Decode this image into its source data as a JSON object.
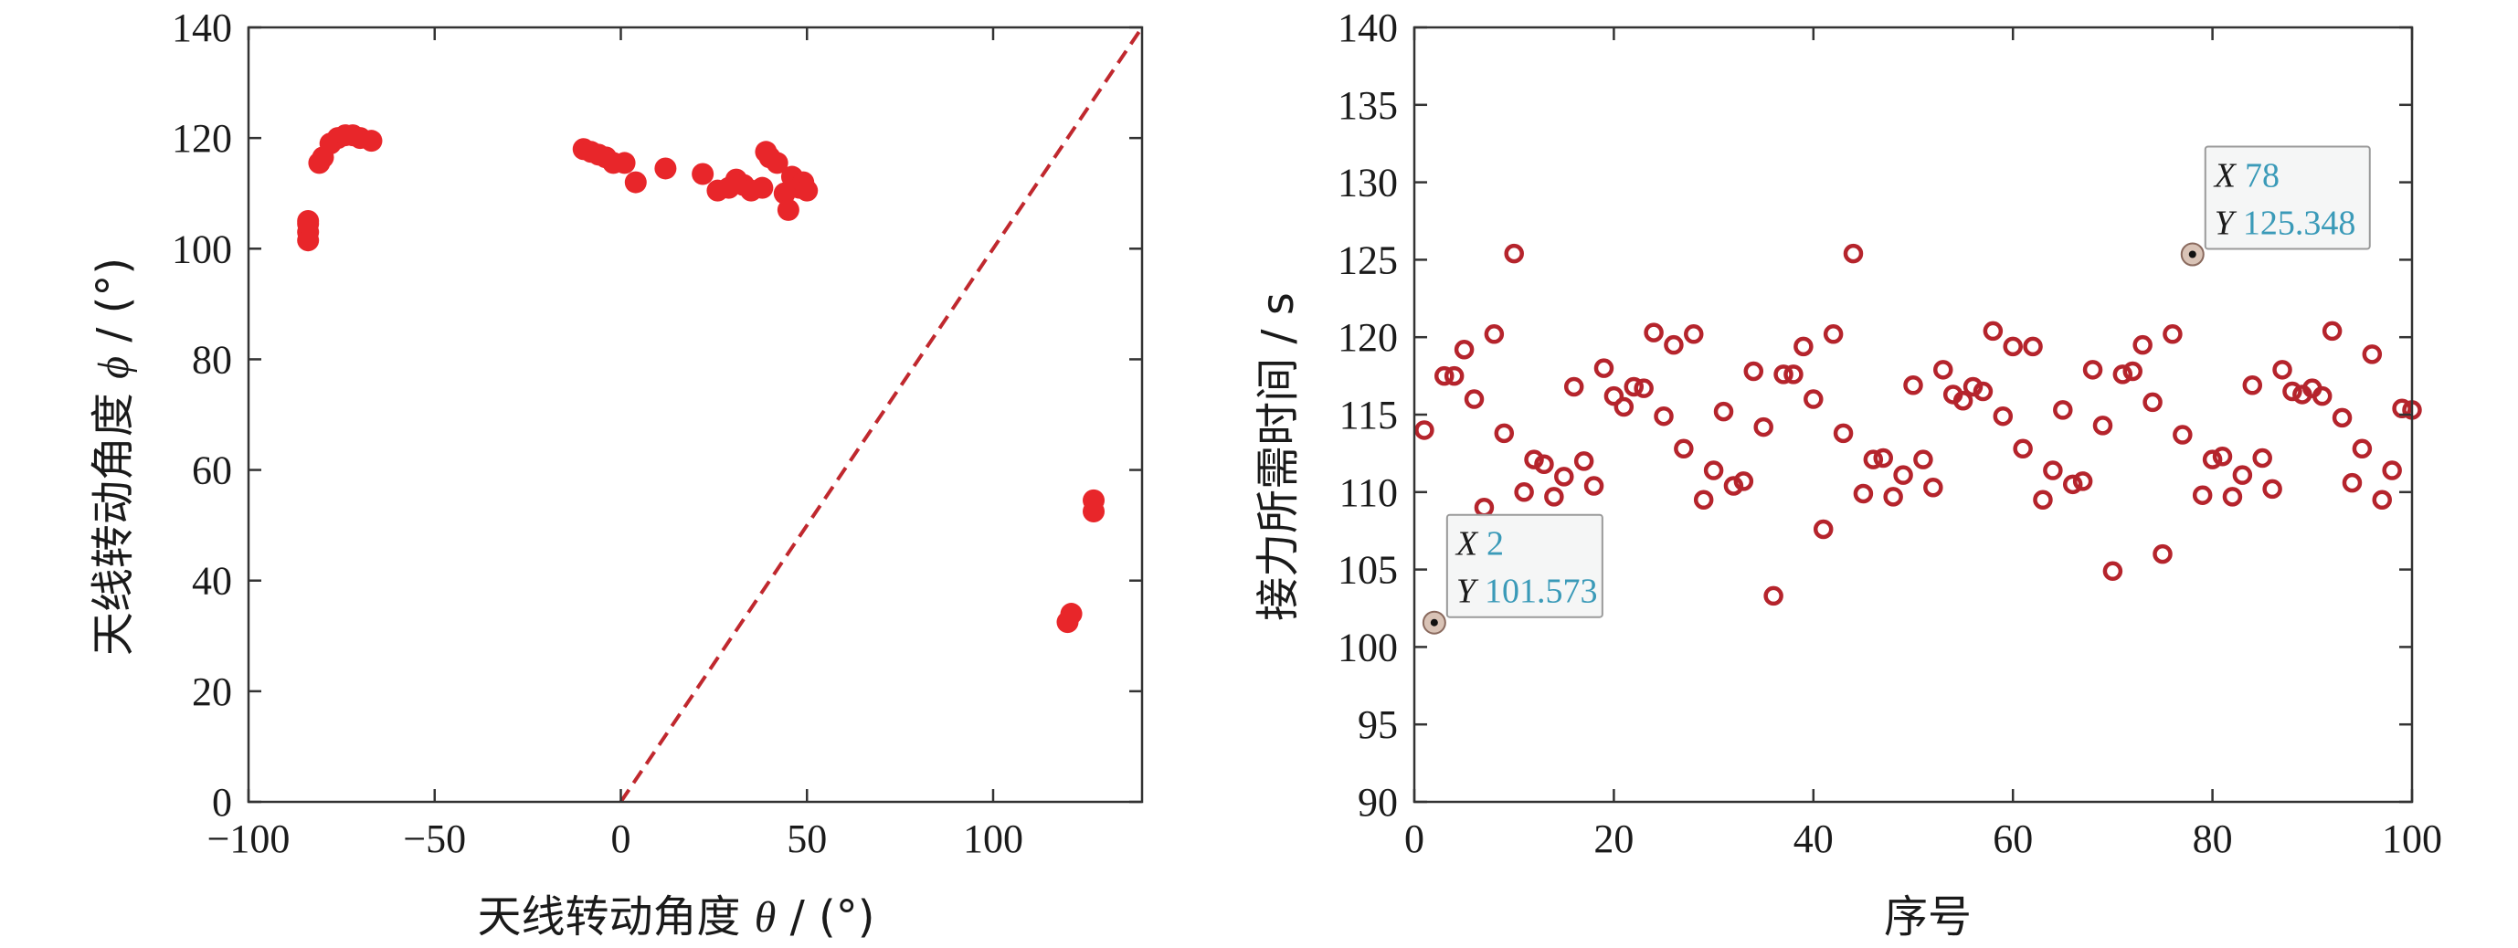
{
  "chart_data": [
    {
      "type": "scatter",
      "title": "",
      "xlabel_text": "天线转动角度",
      "xlabel_symbol": "θ",
      "xlabel_unit": "/ (°)",
      "ylabel_text": "天线转动角度",
      "ylabel_symbol": "ϕ",
      "ylabel_unit": "/ (°)",
      "xlim": [
        -100,
        140
      ],
      "ylim": [
        0,
        140
      ],
      "xticks": [
        -100,
        -50,
        0,
        50,
        100
      ],
      "xtick_labels": [
        "−100",
        "−50",
        "0",
        "50",
        "100"
      ],
      "yticks": [
        0,
        20,
        40,
        60,
        80,
        100,
        120,
        140
      ],
      "ytick_labels": [
        "0",
        "20",
        "40",
        "60",
        "80",
        "100",
        "120",
        "140"
      ],
      "grid": false,
      "colors": {
        "points": "#e8262a",
        "reference_line": "#c0282e"
      },
      "reference_line": {
        "style": "dashed",
        "from": [
          0,
          0
        ],
        "to": [
          140,
          140
        ]
      },
      "series": [
        {
          "marker": "filled-circle",
          "points": [
            [
              -84,
              101.5
            ],
            [
              -84,
              103
            ],
            [
              -84,
              104.5
            ],
            [
              -84,
              105
            ],
            [
              -81,
              115.5
            ],
            [
              -80,
              116.5
            ],
            [
              -78,
              119
            ],
            [
              -76,
              120
            ],
            [
              -74,
              120.5
            ],
            [
              -72,
              120.5
            ],
            [
              -70,
              120
            ],
            [
              -67,
              119.5
            ],
            [
              -10,
              118
            ],
            [
              -8,
              117.5
            ],
            [
              -6,
              117
            ],
            [
              -4,
              116.5
            ],
            [
              -2,
              115.5
            ],
            [
              1,
              115.5
            ],
            [
              4,
              112
            ],
            [
              12,
              114.5
            ],
            [
              22,
              113.5
            ],
            [
              26,
              110.5
            ],
            [
              29,
              111
            ],
            [
              31,
              112.5
            ],
            [
              33,
              111.5
            ],
            [
              35,
              110.5
            ],
            [
              38,
              111
            ],
            [
              39,
              117.5
            ],
            [
              40,
              116.5
            ],
            [
              42,
              115.5
            ],
            [
              44,
              110
            ],
            [
              45,
              107
            ],
            [
              46,
              113
            ],
            [
              48,
              111
            ],
            [
              49,
              112
            ],
            [
              50,
              110.5
            ],
            [
              120,
              32.5
            ],
            [
              121,
              34
            ],
            [
              127,
              52.5
            ],
            [
              127,
              54.5
            ]
          ]
        }
      ]
    },
    {
      "type": "scatter",
      "title": "",
      "xlabel": "序号",
      "ylabel": "接力所需时间 / s",
      "xlim": [
        0,
        100
      ],
      "ylim": [
        90,
        140
      ],
      "xticks": [
        0,
        20,
        40,
        60,
        80,
        100
      ],
      "xtick_labels": [
        "0",
        "20",
        "40",
        "60",
        "80",
        "100"
      ],
      "yticks": [
        90,
        95,
        100,
        105,
        110,
        115,
        120,
        125,
        130,
        135,
        140
      ],
      "ytick_labels": [
        "90",
        "95",
        "100",
        "105",
        "110",
        "115",
        "120",
        "125",
        "130",
        "135",
        "140"
      ],
      "grid": false,
      "colors": {
        "markers": "#b5242c",
        "tooltip_value": "#3a9ab8",
        "tooltip_border": "#9a9a9a"
      },
      "series": [
        {
          "marker": "open-circle",
          "x": [
            1,
            2,
            3,
            4,
            5,
            6,
            7,
            8,
            9,
            10,
            11,
            12,
            13,
            14,
            15,
            16,
            17,
            18,
            19,
            20,
            21,
            22,
            23,
            24,
            25,
            26,
            27,
            28,
            29,
            30,
            31,
            32,
            33,
            34,
            35,
            36,
            37,
            38,
            39,
            40,
            41,
            42,
            43,
            44,
            45,
            46,
            47,
            48,
            49,
            50,
            51,
            52,
            53,
            54,
            55,
            56,
            57,
            58,
            59,
            60,
            61,
            62,
            63,
            64,
            65,
            66,
            67,
            68,
            69,
            70,
            71,
            72,
            73,
            74,
            75,
            76,
            77,
            78,
            79,
            80,
            81,
            82,
            83,
            84,
            85,
            86,
            87,
            88,
            89,
            90,
            91,
            92,
            93,
            94,
            95,
            96,
            97,
            98,
            99,
            100
          ],
          "y": [
            114,
            101.6,
            117.5,
            117.5,
            119.2,
            116,
            109,
            120.2,
            113.8,
            125.4,
            110,
            112.1,
            111.8,
            109.7,
            111,
            116.8,
            112,
            110.4,
            118,
            116.2,
            115.5,
            116.8,
            116.7,
            120.3,
            114.9,
            119.5,
            112.8,
            120.2,
            109.5,
            111.4,
            115.2,
            110.4,
            110.7,
            117.8,
            114.2,
            103.3,
            117.6,
            117.6,
            119.4,
            116,
            107.6,
            120.2,
            113.8,
            125.4,
            109.9,
            112.1,
            112.2,
            109.7,
            111.1,
            116.9,
            112.1,
            110.3,
            117.9,
            116.3,
            115.9,
            116.8,
            116.5,
            120.4,
            114.9,
            119.4,
            112.8,
            119.4,
            109.5,
            111.4,
            115.3,
            110.5,
            110.7,
            117.9,
            114.3,
            104.9,
            117.6,
            117.8,
            119.5,
            115.8,
            106,
            120.2,
            113.7,
            125.348,
            109.8,
            112.1,
            112.3,
            109.7,
            111.1,
            116.9,
            112.2,
            110.2,
            117.9,
            116.5,
            116.3,
            116.7,
            116.2,
            120.4,
            114.8,
            110.6,
            112.8,
            118.9,
            109.5,
            111.4,
            115.4,
            115.3
          ]
        }
      ],
      "datatips": [
        {
          "key_x": "X",
          "val_x": "2",
          "key_y": "Y",
          "val_y": "101.573",
          "point": [
            2,
            101.573
          ]
        },
        {
          "key_x": "X",
          "val_x": "78",
          "key_y": "Y",
          "val_y": "125.348",
          "point": [
            78,
            125.348
          ]
        }
      ]
    }
  ]
}
